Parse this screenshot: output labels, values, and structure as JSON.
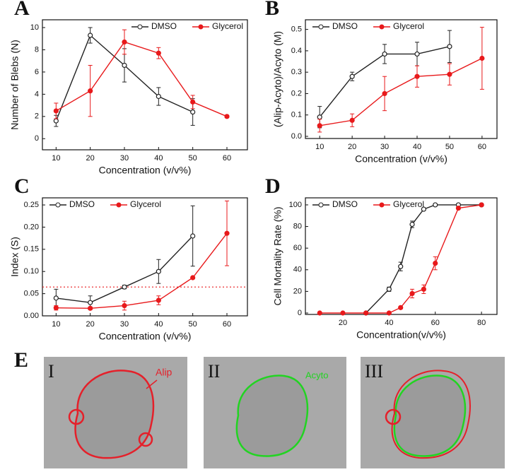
{
  "chart_data": [
    {
      "type": "line",
      "panel": "A",
      "xlabel": "Concentration (v/v%)",
      "ylabel": "Number of Blebs (N)",
      "xlim": [
        6,
        66
      ],
      "ylim": [
        -1,
        10.7
      ],
      "xticks": [
        10,
        20,
        30,
        40,
        50,
        60
      ],
      "yticks": [
        0,
        2,
        4,
        6,
        8,
        10
      ],
      "legend": "top-right",
      "series": [
        {
          "name": "DMSO",
          "color": "#222222",
          "hollow": true,
          "x": [
            10,
            20,
            30,
            40,
            50
          ],
          "values": [
            1.6,
            9.3,
            6.6,
            3.8,
            2.4
          ],
          "errors": [
            0.5,
            0.7,
            1.5,
            0.8,
            1.2
          ]
        },
        {
          "name": "Glycerol",
          "color": "#e8191b",
          "hollow": false,
          "x": [
            10,
            20,
            30,
            40,
            50,
            60
          ],
          "values": [
            2.5,
            4.3,
            8.7,
            7.7,
            3.3,
            2.0
          ],
          "errors": [
            0.7,
            2.3,
            1.1,
            0.5,
            0.6,
            0.1
          ]
        }
      ]
    },
    {
      "type": "line",
      "panel": "B",
      "xlabel": "Concentration (v/v%)",
      "ylabel": "(Alip-Acyto)/Acyto (M)",
      "xlim": [
        5.6,
        64.6
      ],
      "ylim": [
        -0.01,
        0.545
      ],
      "xticks": [
        10,
        20,
        30,
        40,
        50,
        60
      ],
      "yticks": [
        {
          "value": 0,
          "label": "0.0"
        },
        0.1,
        0.2,
        0.3,
        0.4,
        0.5
      ],
      "legend": "top-left",
      "series": [
        {
          "name": "DMSO",
          "color": "#222222",
          "hollow": true,
          "x": [
            10,
            20,
            30,
            40,
            50
          ],
          "values": [
            0.09,
            0.28,
            0.385,
            0.385,
            0.42
          ],
          "errors": [
            0.05,
            0.02,
            0.045,
            0.055,
            0.075
          ]
        },
        {
          "name": "Glycerol",
          "color": "#e8191b",
          "hollow": false,
          "x": [
            10,
            20,
            30,
            40,
            50,
            60
          ],
          "values": [
            0.05,
            0.075,
            0.2,
            0.28,
            0.29,
            0.365
          ],
          "errors": [
            0.03,
            0.03,
            0.08,
            0.05,
            0.05,
            0.145
          ]
        }
      ]
    },
    {
      "type": "line",
      "panel": "C",
      "xlabel": "Concentration (v/v%)",
      "ylabel": "Index (S)",
      "xlim": [
        6,
        66
      ],
      "ylim": [
        0,
        0.266
      ],
      "xticks": [
        10,
        20,
        30,
        40,
        50,
        60
      ],
      "yticks": [
        {
          "value": 0,
          "label": "0.00"
        },
        {
          "value": 0.05,
          "label": "0.05"
        },
        {
          "value": 0.1,
          "label": "0.10"
        },
        {
          "value": 0.15,
          "label": "0.15"
        },
        {
          "value": 0.2,
          "label": "0.20"
        },
        {
          "value": 0.25,
          "label": "0.25"
        }
      ],
      "legend": "top-left",
      "reference_line": 0.065,
      "reference_color": "#e8191b",
      "series": [
        {
          "name": "DMSO",
          "color": "#222222",
          "hollow": true,
          "x": [
            10,
            20,
            30,
            40,
            50
          ],
          "values": [
            0.04,
            0.03,
            0.065,
            0.1,
            0.18
          ],
          "errors": [
            0.02,
            0.015,
            0.004,
            0.027,
            0.068
          ]
        },
        {
          "name": "Glycerol",
          "color": "#e8191b",
          "hollow": false,
          "x": [
            10,
            20,
            30,
            40,
            50,
            60
          ],
          "values": [
            0.018,
            0.017,
            0.023,
            0.035,
            0.086,
            0.186
          ],
          "errors": [
            0.005,
            0.003,
            0.01,
            0.01,
            0.002,
            0.073
          ]
        }
      ]
    },
    {
      "type": "line",
      "panel": "D",
      "xlabel": "Concentration(v/v%)",
      "ylabel": "Cell Mortality Rate (%)",
      "xlim": [
        3.8,
        86.7
      ],
      "ylim": [
        -1.3,
        106.5
      ],
      "xticks": [
        20,
        40,
        60,
        80
      ],
      "yticks": [
        0,
        20,
        40,
        60,
        80,
        100
      ],
      "legend": "top-left",
      "series": [
        {
          "name": "DMSO",
          "color": "#222222",
          "hollow": true,
          "x": [
            30,
            40,
            45,
            50,
            55,
            60,
            70,
            80
          ],
          "values": [
            0,
            22,
            43,
            82,
            96,
            100,
            100,
            100
          ],
          "errors": [
            0,
            2,
            4,
            3,
            1,
            0,
            0,
            0
          ]
        },
        {
          "name": "Glycerol",
          "color": "#e8191b",
          "hollow": false,
          "x": [
            10,
            20,
            30,
            40,
            45,
            50,
            55,
            60,
            70,
            80
          ],
          "values": [
            0,
            0,
            0,
            0,
            5,
            18,
            22,
            46,
            97,
            100
          ],
          "errors": [
            0,
            0,
            0,
            0,
            1,
            4,
            4,
            6,
            1,
            0
          ]
        }
      ]
    }
  ],
  "panel_e": {
    "label": "E",
    "images": [
      {
        "label": "I",
        "annotation": "Alip"
      },
      {
        "label": "II",
        "annotation": "Acyto"
      },
      {
        "label": "III"
      }
    ]
  }
}
